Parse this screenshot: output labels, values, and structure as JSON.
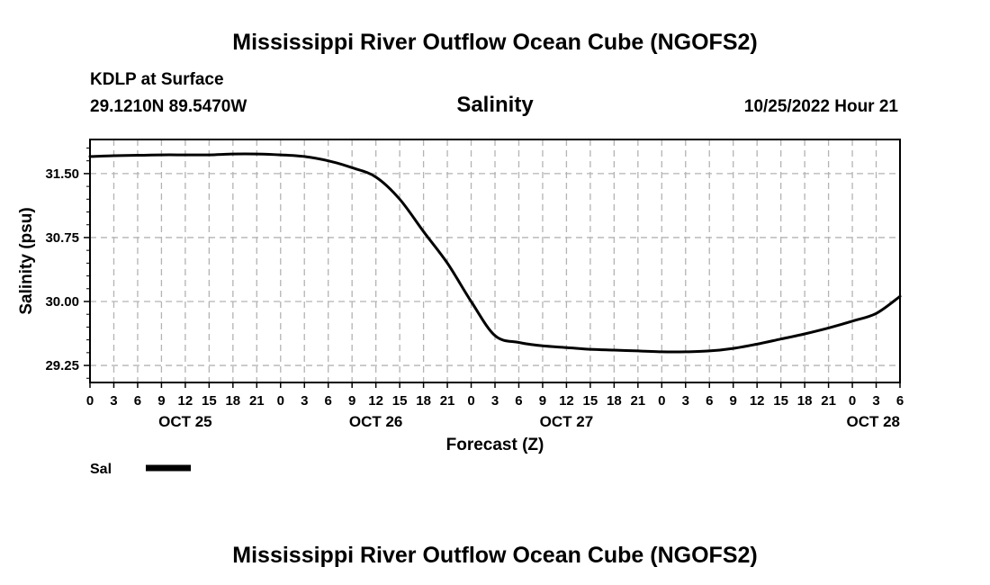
{
  "header": {
    "title": "Mississippi River Outflow Ocean Cube (NGOFS2)",
    "station": "KDLP at Surface",
    "coords": "29.1210N  89.5470W",
    "variable": "Salinity",
    "datetime": "10/25/2022 Hour 21"
  },
  "footer": {
    "title": "Mississippi River Outflow Ocean Cube (NGOFS2)"
  },
  "chart_data": {
    "type": "line",
    "title": "Salinity",
    "xlabel": "Forecast (Z)",
    "ylabel": "Salinity (psu)",
    "x_unit": "forecast hour from OCT 25 00Z",
    "xlim": [
      0,
      102
    ],
    "ylim": [
      29.05,
      31.9
    ],
    "grid": true,
    "y_ticks": [
      {
        "value": 31.5,
        "label": "31.50"
      },
      {
        "value": 30.75,
        "label": "30.75"
      },
      {
        "value": 30.0,
        "label": "30.00"
      },
      {
        "value": 29.25,
        "label": "29.25"
      }
    ],
    "x_ticks": [
      {
        "value": 0,
        "label": "0"
      },
      {
        "value": 3,
        "label": "3"
      },
      {
        "value": 6,
        "label": "6"
      },
      {
        "value": 9,
        "label": "9"
      },
      {
        "value": 12,
        "label": "12"
      },
      {
        "value": 15,
        "label": "15"
      },
      {
        "value": 18,
        "label": "18"
      },
      {
        "value": 21,
        "label": "21"
      },
      {
        "value": 24,
        "label": "0"
      },
      {
        "value": 27,
        "label": "3"
      },
      {
        "value": 30,
        "label": "6"
      },
      {
        "value": 33,
        "label": "9"
      },
      {
        "value": 36,
        "label": "12"
      },
      {
        "value": 39,
        "label": "15"
      },
      {
        "value": 42,
        "label": "18"
      },
      {
        "value": 45,
        "label": "21"
      },
      {
        "value": 48,
        "label": "0"
      },
      {
        "value": 51,
        "label": "3"
      },
      {
        "value": 54,
        "label": "6"
      },
      {
        "value": 57,
        "label": "9"
      },
      {
        "value": 60,
        "label": "12"
      },
      {
        "value": 63,
        "label": "15"
      },
      {
        "value": 66,
        "label": "18"
      },
      {
        "value": 69,
        "label": "21"
      },
      {
        "value": 72,
        "label": "0"
      },
      {
        "value": 75,
        "label": "3"
      },
      {
        "value": 78,
        "label": "6"
      },
      {
        "value": 81,
        "label": "9"
      },
      {
        "value": 84,
        "label": "12"
      },
      {
        "value": 87,
        "label": "15"
      },
      {
        "value": 90,
        "label": "18"
      },
      {
        "value": 93,
        "label": "21"
      },
      {
        "value": 96,
        "label": "0"
      },
      {
        "value": 99,
        "label": "3"
      },
      {
        "value": 102,
        "label": "6"
      }
    ],
    "date_labels": [
      {
        "value": 12,
        "label": "OCT 25"
      },
      {
        "value": 36,
        "label": "OCT 26"
      },
      {
        "value": 60,
        "label": "OCT 27"
      },
      {
        "value": 102,
        "label": "OCT 28"
      }
    ],
    "series": [
      {
        "name": "Sal",
        "x": [
          0,
          3,
          6,
          9,
          12,
          15,
          18,
          21,
          24,
          27,
          30,
          33,
          36,
          39,
          42,
          45,
          48,
          51,
          54,
          57,
          60,
          63,
          66,
          69,
          72,
          75,
          78,
          81,
          84,
          87,
          90,
          93,
          96,
          99,
          102
        ],
        "y": [
          31.7,
          31.71,
          31.715,
          31.72,
          31.72,
          31.72,
          31.73,
          31.73,
          31.72,
          31.7,
          31.65,
          31.57,
          31.46,
          31.2,
          30.82,
          30.45,
          30.0,
          29.6,
          29.52,
          29.48,
          29.46,
          29.44,
          29.43,
          29.42,
          29.41,
          29.41,
          29.42,
          29.45,
          29.5,
          29.56,
          29.62,
          29.69,
          29.77,
          29.86,
          30.06
        ]
      }
    ],
    "legend": {
      "label": "Sal",
      "position": "bottom-left"
    }
  }
}
